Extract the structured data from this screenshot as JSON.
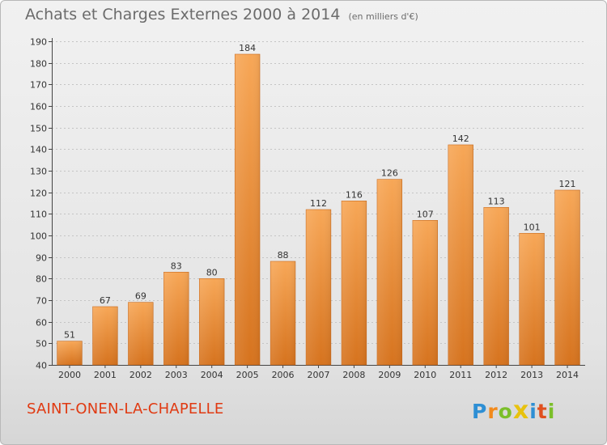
{
  "header": {
    "title": "Achats et Charges Externes 2000 à 2014",
    "unit": "(en milliers d'€)"
  },
  "footer": {
    "city": "SAINT-ONEN-LA-CHAPELLE",
    "logo": [
      "P",
      "r",
      "o",
      "x",
      "i",
      "t",
      "i"
    ]
  },
  "colors": {
    "bar_top": "#f7a757",
    "bar_bottom": "#d6731e",
    "city": "#e03a12",
    "logo": [
      "#2e8fd4",
      "#f28a1c",
      "#7bbf2a",
      "#e8c20e",
      "#2e8fd4",
      "#e0501f",
      "#7bbf2a"
    ]
  },
  "chart_data": {
    "type": "bar",
    "categories": [
      "2000",
      "2001",
      "2002",
      "2003",
      "2004",
      "2005",
      "2006",
      "2007",
      "2008",
      "2009",
      "2010",
      "2011",
      "2012",
      "2013",
      "2014"
    ],
    "values": [
      51,
      67,
      69,
      83,
      80,
      184,
      88,
      112,
      116,
      126,
      107,
      142,
      113,
      101,
      121
    ],
    "ylim": [
      40,
      190
    ],
    "yticks": [
      40,
      50,
      60,
      70,
      80,
      90,
      100,
      110,
      120,
      130,
      140,
      150,
      160,
      170,
      180,
      190
    ],
    "grid": true,
    "data_labels": true
  }
}
